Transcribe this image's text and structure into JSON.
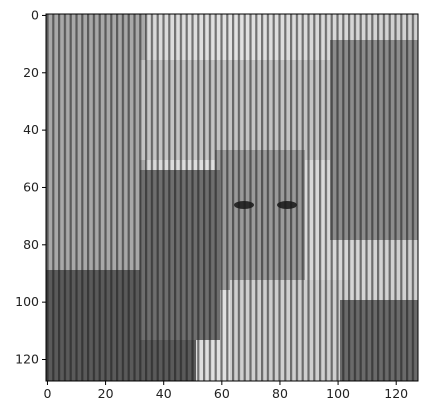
{
  "image": {
    "description_icon": "grayscale-image-icon",
    "cmap": "gray",
    "shape": [
      128,
      128
    ],
    "x_ticks": [
      {
        "value": 0,
        "label": "0"
      },
      {
        "value": 20,
        "label": "20"
      },
      {
        "value": 40,
        "label": "40"
      },
      {
        "value": 60,
        "label": "60"
      },
      {
        "value": 80,
        "label": "80"
      },
      {
        "value": 100,
        "label": "100"
      },
      {
        "value": 120,
        "label": "120"
      }
    ],
    "y_ticks": [
      {
        "value": 0,
        "label": "0"
      },
      {
        "value": 20,
        "label": "20"
      },
      {
        "value": 40,
        "label": "40"
      },
      {
        "value": 60,
        "label": "60"
      },
      {
        "value": 80,
        "label": "80"
      },
      {
        "value": 100,
        "label": "100"
      },
      {
        "value": 120,
        "label": "120"
      }
    ],
    "colors": {
      "frame": "#000000",
      "tick_text": "#222222"
    }
  }
}
